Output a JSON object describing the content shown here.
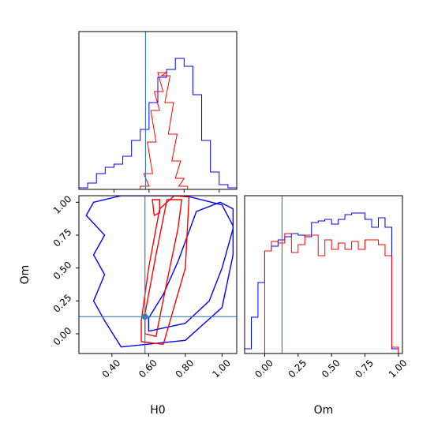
{
  "colors": {
    "posterior_a": "#0000ff",
    "posterior_b": "#ff0000",
    "truth": "#3f7fb0",
    "frame": "#000000"
  },
  "chart_data": {
    "type": "corner",
    "parameters": [
      "H0",
      "Om"
    ],
    "truth": {
      "H0": 0.58,
      "Om": 0.13
    },
    "series": [
      {
        "color": "#0000ff"
      },
      {
        "color": "#ff0000"
      }
    ],
    "panels": [
      {
        "id": "hist-H0",
        "type": "step-histogram",
        "xlim": [
          0.2,
          1.1
        ],
        "xticks": [
          0.4,
          0.6,
          0.8,
          1.0
        ],
        "ylim": [
          0,
          1
        ],
        "bin_width": 0.05,
        "series": [
          {
            "color": "#0000ff",
            "bins": [
              [
                0.2,
                0.01
              ],
              [
                0.25,
                0.04
              ],
              [
                0.3,
                0.1
              ],
              [
                0.35,
                0.14
              ],
              [
                0.4,
                0.16
              ],
              [
                0.45,
                0.21
              ],
              [
                0.5,
                0.31
              ],
              [
                0.55,
                0.38
              ],
              [
                0.6,
                0.55
              ],
              [
                0.65,
                0.71
              ],
              [
                0.7,
                0.76
              ],
              [
                0.75,
                0.83
              ],
              [
                0.8,
                0.78
              ],
              [
                0.85,
                0.6
              ],
              [
                0.9,
                0.31
              ],
              [
                0.95,
                0.11
              ],
              [
                1.0,
                0.03
              ],
              [
                1.05,
                0.01
              ]
            ]
          },
          {
            "color": "#ff0000",
            "bins": [
              [
                0.55,
                0.02
              ],
              [
                0.57,
                0.1
              ],
              [
                0.59,
                0.3
              ],
              [
                0.61,
                0.5
              ],
              [
                0.63,
                0.62
              ],
              [
                0.65,
                0.74
              ],
              [
                0.67,
                0.72
              ],
              [
                0.69,
                0.55
              ],
              [
                0.71,
                0.35
              ],
              [
                0.73,
                0.18
              ],
              [
                0.75,
                0.07
              ],
              [
                0.77,
                0.02
              ]
            ]
          }
        ]
      },
      {
        "id": "contour-H0-Om",
        "type": "contour",
        "xlabel": "H0",
        "ylabel": "Om",
        "xlim": [
          0.22,
          1.08
        ],
        "ylim": [
          -0.15,
          1.05
        ],
        "xticks": [
          0.4,
          0.6,
          0.8,
          1.0
        ],
        "yticks": [
          0.0,
          0.25,
          0.5,
          0.75,
          1.0
        ],
        "series": [
          {
            "color": "#0000ff",
            "contours": [
              [
                [
                  0.6,
                  0.02
                ],
                [
                  0.8,
                  0.08
                ],
                [
                  0.93,
                  0.25
                ],
                [
                  1.0,
                  0.5
                ],
                [
                  1.06,
                  0.8
                ],
                [
                  1.06,
                  0.95
                ],
                [
                  0.99,
                  1.0
                ],
                [
                  0.86,
                  0.93
                ],
                [
                  0.76,
                  0.55
                ],
                [
                  0.68,
                  0.3
                ],
                [
                  0.6,
                  0.12
                ],
                [
                  0.6,
                  0.02
                ]
              ],
              [
                [
                  0.45,
                  -0.1
                ],
                [
                  0.8,
                  -0.05
                ],
                [
                  1.0,
                  0.2
                ],
                [
                  1.06,
                  0.6
                ],
                [
                  1.06,
                  0.82
                ],
                [
                  1.0,
                  0.98
                ],
                [
                  0.8,
                  1.05
                ],
                [
                  0.45,
                  1.05
                ],
                [
                  0.3,
                  1.0
                ],
                [
                  0.26,
                  0.9
                ],
                [
                  0.36,
                  0.75
                ],
                [
                  0.3,
                  0.6
                ],
                [
                  0.36,
                  0.45
                ],
                [
                  0.3,
                  0.25
                ],
                [
                  0.36,
                  0.1
                ],
                [
                  0.45,
                  -0.1
                ]
              ]
            ]
          },
          {
            "color": "#ff0000",
            "contours": [
              [
                [
                  0.58,
                  0.0
                ],
                [
                  0.64,
                  -0.02
                ],
                [
                  0.7,
                  0.4
                ],
                [
                  0.76,
                  0.8
                ],
                [
                  0.78,
                  1.02
                ],
                [
                  0.7,
                  1.02
                ],
                [
                  0.64,
                  0.6
                ],
                [
                  0.58,
                  0.15
                ],
                [
                  0.58,
                  0.0
                ]
              ],
              [
                [
                  0.56,
                  -0.06
                ],
                [
                  0.68,
                  -0.08
                ],
                [
                  0.8,
                  0.5
                ],
                [
                  0.82,
                  1.04
                ],
                [
                  0.74,
                  1.05
                ],
                [
                  0.66,
                  0.95
                ],
                [
                  0.6,
                  0.5
                ],
                [
                  0.56,
                  0.1
                ],
                [
                  0.56,
                  -0.06
                ]
              ],
              [
                [
                  0.63,
                  0.9
                ],
                [
                  0.66,
                  0.92
                ],
                [
                  0.66,
                  1.02
                ],
                [
                  0.62,
                  1.02
                ],
                [
                  0.63,
                  0.9
                ]
              ]
            ]
          }
        ]
      },
      {
        "id": "hist-Om",
        "type": "step-histogram",
        "xlabel": "Om",
        "xlim": [
          -0.15,
          1.03
        ],
        "xticks": [
          0.0,
          0.25,
          0.5,
          0.75,
          1.0
        ],
        "ylim": [
          0,
          1
        ],
        "bin_width": 0.05,
        "series": [
          {
            "color": "#0000ff",
            "bins": [
              [
                -0.15,
                0.03
              ],
              [
                -0.1,
                0.23
              ],
              [
                -0.05,
                0.45
              ],
              [
                0.0,
                0.65
              ],
              [
                0.05,
                0.68
              ],
              [
                0.1,
                0.72
              ],
              [
                0.15,
                0.74
              ],
              [
                0.2,
                0.76
              ],
              [
                0.25,
                0.75
              ],
              [
                0.3,
                0.74
              ],
              [
                0.35,
                0.83
              ],
              [
                0.4,
                0.84
              ],
              [
                0.45,
                0.85
              ],
              [
                0.5,
                0.82
              ],
              [
                0.55,
                0.85
              ],
              [
                0.6,
                0.88
              ],
              [
                0.65,
                0.89
              ],
              [
                0.7,
                0.89
              ],
              [
                0.75,
                0.85
              ],
              [
                0.8,
                0.8
              ],
              [
                0.85,
                0.86
              ],
              [
                0.9,
                0.8
              ],
              [
                0.95,
                0.03
              ]
            ]
          },
          {
            "color": "#ff0000",
            "bins": [
              [
                0.0,
                0.65
              ],
              [
                0.05,
                0.71
              ],
              [
                0.1,
                0.7
              ],
              [
                0.15,
                0.76
              ],
              [
                0.2,
                0.64
              ],
              [
                0.25,
                0.69
              ],
              [
                0.3,
                0.75
              ],
              [
                0.35,
                0.75
              ],
              [
                0.4,
                0.62
              ],
              [
                0.45,
                0.72
              ],
              [
                0.5,
                0.66
              ],
              [
                0.55,
                0.7
              ],
              [
                0.6,
                0.66
              ],
              [
                0.65,
                0.71
              ],
              [
                0.7,
                0.66
              ],
              [
                0.75,
                0.72
              ],
              [
                0.8,
                0.72
              ],
              [
                0.85,
                0.69
              ],
              [
                0.9,
                0.62
              ],
              [
                0.95,
                0.04
              ]
            ]
          }
        ]
      }
    ]
  }
}
